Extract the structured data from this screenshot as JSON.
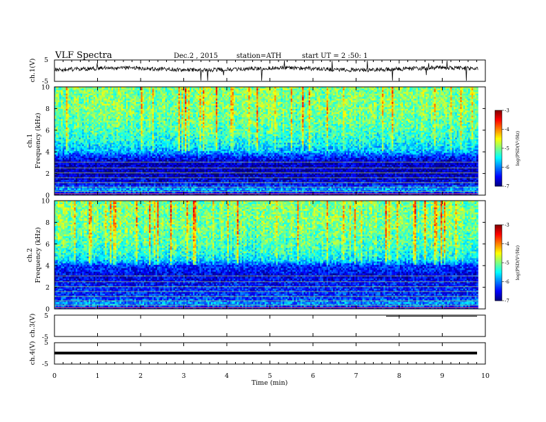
{
  "header": {
    "title": "VLF Spectra",
    "date": "Dec.2 , 2015",
    "station": "station=ATH",
    "start_time": "start UT = 2 :50: 1"
  },
  "panels": {
    "ch1_voltage_label": "ch.1(V)",
    "ch1_spec_label": "ch.1",
    "ch2_spec_label": "ch.2",
    "freq_label": "Frequency (kHz)",
    "ch3_voltage_label": "ch.3(V)",
    "ch4_voltage_label": "ch.4(V)",
    "xlabel": "Time (min)",
    "colorbar_label": "log(PSD(V²/Hz)"
  },
  "chart_data": [
    {
      "type": "line",
      "panel": "ch.1 waveform",
      "ylabel": "ch.1(V)",
      "xlim": [
        0,
        10
      ],
      "ylim": [
        -5,
        5
      ],
      "yticks": [
        "5",
        "-5"
      ],
      "series_description": "noisy trace near 0 V with spikes, 0 to ~9.8 min"
    },
    {
      "type": "heatmap",
      "panel": "ch.1 spectrogram",
      "ylabel": "Frequency (kHz)",
      "xlim": [
        0,
        10
      ],
      "ylim": [
        0,
        10
      ],
      "yticks": [
        "0",
        "2",
        "4",
        "6",
        "8",
        "10"
      ],
      "colorbar": {
        "range": [
          -7,
          -3
        ],
        "ticks": [
          "-3",
          "-4",
          "-5",
          "-6",
          "-7"
        ],
        "label": "log(PSD(V²/Hz)"
      },
      "band_profile_khz_logpsd": [
        [
          0.0,
          -6.7
        ],
        [
          0.5,
          -5.8
        ],
        [
          1.0,
          -6.5
        ],
        [
          2.0,
          -6.8
        ],
        [
          3.0,
          -6.7
        ],
        [
          3.5,
          -6.4
        ],
        [
          4.0,
          -5.8
        ],
        [
          5.0,
          -5.4
        ],
        [
          6.0,
          -5.2
        ],
        [
          8.0,
          -5.0
        ],
        [
          10.0,
          -5.0
        ]
      ]
    },
    {
      "type": "heatmap",
      "panel": "ch.2 spectrogram",
      "ylabel": "Frequency (kHz)",
      "xlim": [
        0,
        10
      ],
      "ylim": [
        0,
        10
      ],
      "yticks": [
        "0",
        "2",
        "4",
        "6",
        "8",
        "10"
      ],
      "colorbar": {
        "range": [
          -7,
          -3
        ],
        "ticks": [
          "-3",
          "-4",
          "-5",
          "-6",
          "-7"
        ],
        "label": "log(PSD(V²/Hz)"
      },
      "band_profile_khz_logpsd": [
        [
          0.0,
          -6.5
        ],
        [
          0.5,
          -5.9
        ],
        [
          1.0,
          -6.3
        ],
        [
          2.0,
          -6.4
        ],
        [
          3.0,
          -6.6
        ],
        [
          4.0,
          -6.3
        ],
        [
          4.5,
          -5.6
        ],
        [
          5.0,
          -5.4
        ],
        [
          6.0,
          -5.2
        ],
        [
          8.0,
          -5.0
        ],
        [
          10.0,
          -5.0
        ]
      ]
    },
    {
      "type": "line",
      "panel": "ch.3 waveform",
      "ylabel": "ch.3(V)",
      "xlim": [
        0,
        10
      ],
      "ylim": [
        -5,
        5
      ],
      "yticks": [
        "5",
        "-5"
      ]
    },
    {
      "type": "line",
      "panel": "ch.4 waveform",
      "ylabel": "ch.4(V)",
      "xlim": [
        0,
        10
      ],
      "ylim": [
        -5,
        5
      ],
      "yticks": [
        "5",
        "-5"
      ],
      "series_description": "thick flat line at about -1 V"
    }
  ],
  "x_axis": {
    "label": "Time (min)",
    "range": [
      0,
      10
    ],
    "ticks": [
      "0",
      "1",
      "2",
      "3",
      "4",
      "5",
      "6",
      "7",
      "8",
      "9",
      "10"
    ]
  }
}
